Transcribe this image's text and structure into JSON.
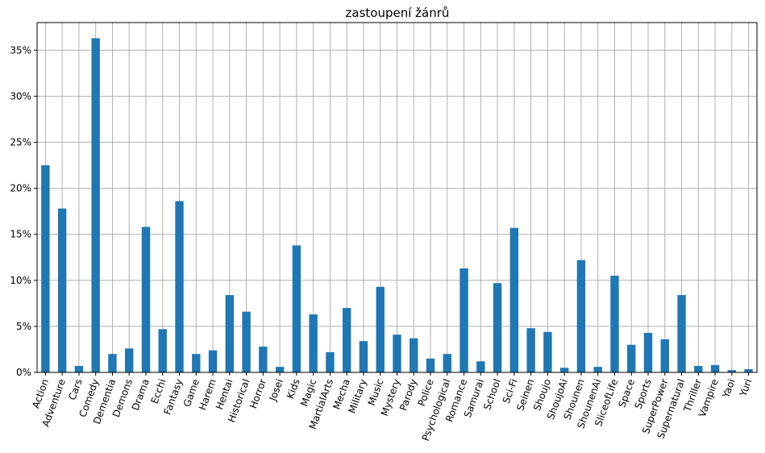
{
  "chart_data": {
    "type": "bar",
    "title": "zastoupení žánrů",
    "xlabel": "",
    "ylabel": "",
    "categories": [
      "Action",
      "Adventure",
      "Cars",
      "Comedy",
      "Dementia",
      "Demons",
      "Drama",
      "Ecchi",
      "Fantasy",
      "Game",
      "Harem",
      "Hentai",
      "Historical",
      "Horror",
      "Josei",
      "Kids",
      "Magic",
      "MartialArts",
      "Mecha",
      "Military",
      "Music",
      "Mystery",
      "Parody",
      "Police",
      "Psychological",
      "Romance",
      "Samurai",
      "School",
      "Sci-Fi",
      "Seinen",
      "Shoujo",
      "ShoujoAi",
      "Shounen",
      "ShounenAi",
      "SliceofLife",
      "Space",
      "Sports",
      "SuperPower",
      "Supernatural",
      "Thriller",
      "Vampire",
      "Yaoi",
      "Yuri"
    ],
    "values": [
      22.5,
      17.8,
      0.7,
      36.3,
      2.0,
      2.6,
      15.8,
      4.7,
      18.6,
      2.0,
      2.4,
      8.4,
      6.6,
      2.8,
      0.6,
      13.8,
      6.3,
      2.2,
      7.0,
      3.4,
      9.3,
      4.1,
      3.7,
      1.5,
      2.0,
      11.3,
      1.2,
      9.7,
      15.7,
      4.8,
      4.4,
      0.5,
      12.2,
      0.6,
      10.5,
      3.0,
      4.3,
      3.6,
      8.4,
      0.7,
      0.8,
      0.25,
      0.35
    ],
    "ylim": [
      0,
      38
    ],
    "yticks": [
      0,
      5,
      10,
      15,
      20,
      25,
      30,
      35
    ],
    "ytick_format": "%",
    "grid": true,
    "bar_color": "#1f77b4",
    "grid_color": "#b0b0b0"
  }
}
